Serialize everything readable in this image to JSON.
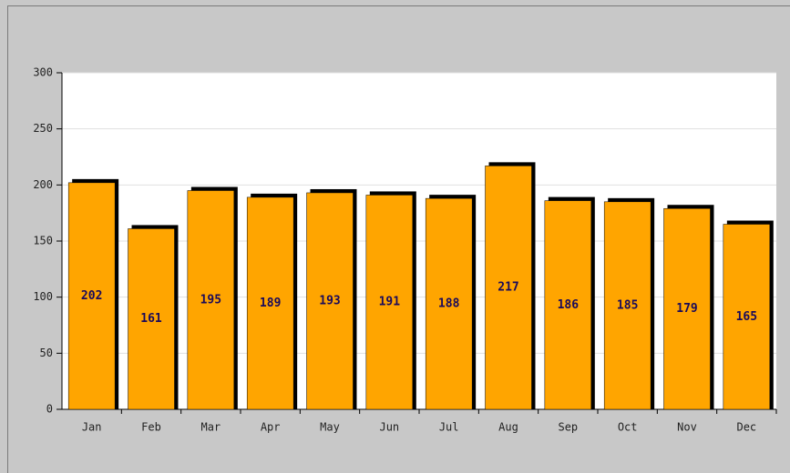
{
  "chart_data": {
    "type": "bar",
    "categories": [
      "Jan",
      "Feb",
      "Mar",
      "Apr",
      "May",
      "Jun",
      "Jul",
      "Aug",
      "Sep",
      "Oct",
      "Nov",
      "Dec"
    ],
    "values": [
      202,
      161,
      195,
      189,
      193,
      191,
      188,
      217,
      186,
      185,
      179,
      165
    ],
    "color": "#ffa500",
    "ylim": [
      0,
      300
    ],
    "yticks": [
      0,
      50,
      100,
      150,
      200,
      250,
      300
    ],
    "grid": true
  }
}
